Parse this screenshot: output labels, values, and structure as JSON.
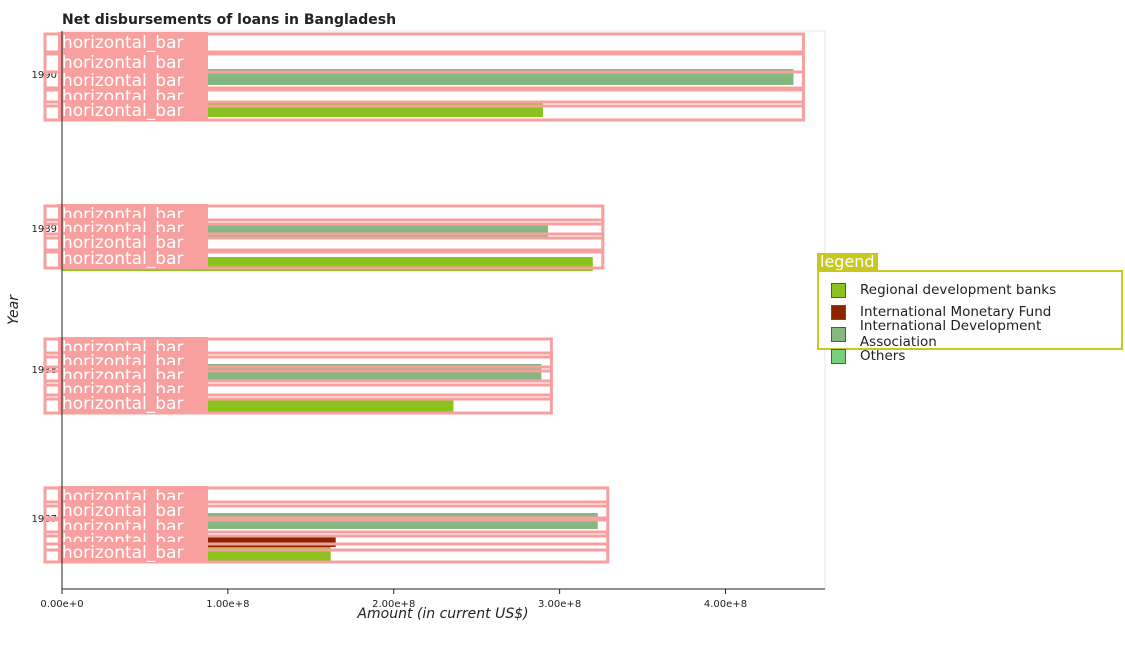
{
  "chart_data": {
    "type": "bar",
    "orientation": "horizontal",
    "title": "Net disbursements of loans in Bangladesh",
    "xlabel": "Amount (in current US$)",
    "ylabel": "Year",
    "categories": [
      "1987",
      "1988",
      "1989",
      "1990"
    ],
    "xlim": [
      0,
      460000000
    ],
    "xticks": [
      0,
      100000000,
      200000000,
      300000000,
      400000000
    ],
    "xtick_labels": [
      "0.00e+0",
      "1.00e+8",
      "2.00e+8",
      "3.00e+8",
      "4.00e+8"
    ],
    "series": [
      {
        "name": "Regional development banks",
        "values": [
          162000000,
          236000000,
          320000000,
          290000000
        ],
        "color": "#8cc21e"
      },
      {
        "name": "International Monetary Fund",
        "values": [
          165000000,
          0,
          5000000,
          0
        ],
        "color": "#8b2500"
      },
      {
        "name": "International Development Association",
        "values": [
          323000000,
          289000000,
          293000000,
          441000000
        ],
        "color": "#85b880"
      },
      {
        "name": "Others",
        "values": [
          0,
          0,
          0,
          0
        ],
        "color": "#7ad07a"
      }
    ],
    "legend": {
      "title": "legend",
      "position": "right"
    },
    "grid": false,
    "annotation_text": "horizontal_bar"
  }
}
